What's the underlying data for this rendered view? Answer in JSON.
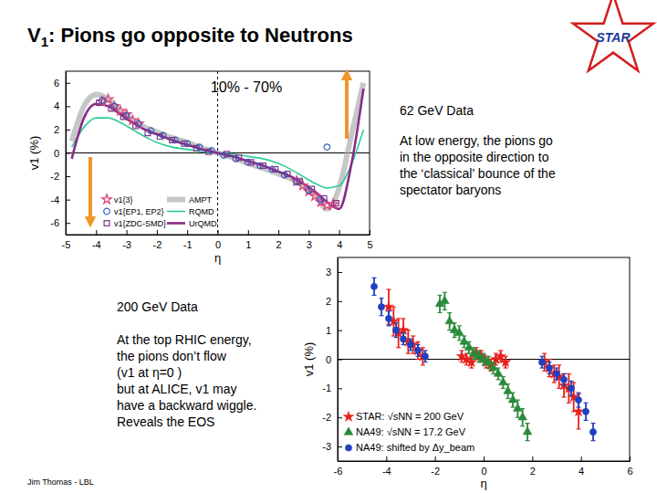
{
  "slide": {
    "title": [
      "V",
      "1",
      ": Pions go opposite to Neutrons"
    ],
    "logo": "STAR",
    "note_62": {
      "heading": "62 GeV Data",
      "lines": [
        "At low energy, the pions go",
        "in the opposite direction to",
        "the ‘classical’ bounce of the",
        "spectator baryons"
      ]
    },
    "note_200": {
      "heading": "200 GeV Data",
      "lines": [
        "At the top RHIC energy,",
        "the pions don’t flow",
        "(v1 at η=0 )",
        "but at ALICE, v1 may",
        "have a backward wiggle.",
        "Reveals the EOS"
      ]
    },
    "footer": "Jim Thomas - LBL"
  },
  "chart_data": [
    {
      "type": "scatter",
      "title": "10% - 70%",
      "x_label": "η",
      "y_label": "v1 (%)",
      "xlim": [
        -5,
        5
      ],
      "ylim": [
        -7,
        7
      ],
      "xticks": [
        -5,
        -4,
        -3,
        -2,
        -1,
        0,
        1,
        2,
        3,
        4,
        5
      ],
      "yticks": [
        -6,
        -4,
        -2,
        0,
        2,
        4,
        6
      ],
      "legend": "lower left",
      "reference_lines": [
        {
          "axis": "y",
          "value": 0,
          "line_style": "solid"
        },
        {
          "axis": "x",
          "value": 0,
          "line_style": "dashed"
        }
      ],
      "series": [
        {
          "name": "v1{3}",
          "color": "#e0407a",
          "marker": "open-star",
          "x": [
            -3.8,
            -3.6,
            -3.4,
            -3.2,
            -3.0,
            -2.8,
            -2.6,
            2.6,
            2.8,
            3.0,
            3.2,
            3.4,
            3.6,
            3.8
          ],
          "values": [
            4.4,
            4.6,
            4.0,
            3.6,
            3.3,
            2.8,
            2.5,
            -2.4,
            -2.8,
            -3.3,
            -3.7,
            -4.2,
            -4.5,
            -4.4
          ]
        },
        {
          "name": "v1{EP1, EP2}",
          "color": "#3060c0",
          "marker": "open-circle",
          "x": [
            -3.8,
            -3.4,
            -3.0,
            -2.6,
            -2.2,
            -1.8,
            -1.4,
            -1.0,
            -0.6,
            -0.2,
            0.2,
            0.6,
            1.0,
            1.4,
            1.8,
            2.2,
            2.6,
            3.0,
            3.4,
            3.6
          ],
          "values": [
            4.5,
            4.0,
            3.2,
            2.5,
            1.9,
            1.5,
            1.1,
            0.8,
            0.5,
            0.2,
            -0.2,
            -0.5,
            -0.8,
            -1.1,
            -1.4,
            -1.9,
            -2.5,
            -3.2,
            -4.0,
            0.5
          ]
        },
        {
          "name": "v1{ZDC-SMD}",
          "color": "#7a3a8a",
          "marker": "open-square",
          "x": [
            -3.9,
            -3.5,
            -3.1,
            -2.7,
            -2.3,
            -1.9,
            -1.5,
            -1.1,
            -0.7,
            -0.3,
            0.3,
            0.7,
            1.1,
            1.5,
            1.9,
            2.3,
            2.7,
            3.1,
            3.5,
            3.9
          ],
          "values": [
            4.3,
            3.8,
            3.1,
            2.3,
            1.7,
            1.4,
            1.1,
            0.8,
            0.4,
            0.1,
            -0.1,
            -0.4,
            -0.8,
            -1.1,
            -1.4,
            -1.8,
            -2.4,
            -3.1,
            -3.9,
            -4.3
          ]
        },
        {
          "name": "AMPT",
          "color": "#a8a8a8",
          "type": "line",
          "line_style": "solid",
          "x": [
            -4.8,
            -4.4,
            -4.0,
            -3.6,
            -3.2,
            -2.8,
            -2.4,
            -2.0,
            -1.5,
            -1.0,
            -0.5,
            0,
            0.5,
            1.0,
            1.5,
            2.0,
            2.4,
            2.8,
            3.2,
            3.6,
            4.0,
            4.4,
            4.8
          ],
          "values": [
            1.0,
            4.0,
            5.0,
            4.6,
            3.6,
            2.8,
            2.2,
            1.8,
            1.3,
            0.9,
            0.4,
            0,
            -0.4,
            -0.9,
            -1.3,
            -1.8,
            -2.2,
            -2.8,
            -3.6,
            -4.8,
            -3.0,
            1.5,
            6.0
          ]
        },
        {
          "name": "RQMD",
          "color": "#2ecc99",
          "type": "line",
          "line_style": "solid",
          "x": [
            -4.8,
            -4.4,
            -4.0,
            -3.6,
            -3.2,
            -2.8,
            -2.4,
            -2.0,
            -1.5,
            -1.0,
            -0.5,
            0,
            0.5,
            1.0,
            1.5,
            2.0,
            2.4,
            2.8,
            3.2,
            3.6,
            4.0,
            4.4,
            4.8
          ],
          "values": [
            0.5,
            2.2,
            3.0,
            3.0,
            2.6,
            2.0,
            1.4,
            0.9,
            0.5,
            0.3,
            0.1,
            0,
            -0.1,
            -0.3,
            -0.5,
            -0.9,
            -1.4,
            -2.0,
            -2.6,
            -3.0,
            -2.8,
            -1.0,
            2.0
          ]
        },
        {
          "name": "UrQMD",
          "color": "#8a2a8a",
          "type": "line",
          "line_style": "solid",
          "x": [
            -4.8,
            -4.4,
            -4.0,
            -3.6,
            -3.2,
            -2.8,
            -2.4,
            -2.0,
            -1.5,
            -1.0,
            -0.5,
            0,
            0.5,
            1.0,
            1.5,
            2.0,
            2.4,
            2.8,
            3.2,
            3.6,
            4.0,
            4.4,
            4.8
          ],
          "values": [
            -0.5,
            3.0,
            4.2,
            4.0,
            3.3,
            2.6,
            2.0,
            1.6,
            1.1,
            0.7,
            0.3,
            0,
            -0.3,
            -0.7,
            -1.1,
            -1.6,
            -2.0,
            -2.6,
            -3.3,
            -4.2,
            -4.8,
            -1.0,
            5.5
          ]
        }
      ]
    },
    {
      "type": "scatter",
      "x_label": "η",
      "y_label": "v1 (%)",
      "xlim": [
        -6,
        6
      ],
      "ylim": [
        -3.5,
        3.5
      ],
      "xticks": [
        -6,
        -4,
        -2,
        0,
        2,
        4,
        6
      ],
      "yticks": [
        -3,
        -2,
        -1,
        0,
        1,
        2,
        3
      ],
      "legend": "lower left",
      "reference_lines": [
        {
          "axis": "y",
          "value": 0,
          "line_style": "solid"
        }
      ],
      "series": [
        {
          "name": "STAR: √sNN = 200 GeV",
          "color": "#e8201a",
          "marker": "star",
          "x": [
            -3.9,
            -3.7,
            -3.5,
            -3.3,
            -3.1,
            -2.9,
            -2.7,
            -2.5,
            -0.9,
            -0.7,
            -0.5,
            -0.3,
            -0.1,
            0.1,
            0.3,
            0.5,
            0.7,
            0.9,
            2.5,
            2.7,
            2.9,
            3.1,
            3.3,
            3.5,
            3.7,
            3.9
          ],
          "values": [
            1.8,
            1.3,
            0.9,
            1.0,
            0.6,
            0.5,
            0.3,
            0.1,
            0.1,
            0.0,
            -0.1,
            0.2,
            0.1,
            -0.1,
            -0.2,
            0.0,
            0.1,
            -0.1,
            -0.1,
            -0.3,
            -0.5,
            -0.6,
            -0.9,
            -1.0,
            -1.3,
            -1.8
          ],
          "errors": [
            0.6,
            0.5,
            0.5,
            0.4,
            0.4,
            0.3,
            0.3,
            0.3,
            0.2,
            0.2,
            0.2,
            0.2,
            0.2,
            0.2,
            0.2,
            0.2,
            0.2,
            0.2,
            0.3,
            0.3,
            0.3,
            0.4,
            0.4,
            0.5,
            0.5,
            0.6
          ]
        },
        {
          "name": "NA49: √sNN = 17.2 GeV",
          "color": "#2a8a3a",
          "marker": "triangle",
          "x": [
            -1.8,
            -1.6,
            -1.4,
            -1.2,
            -1.0,
            -0.8,
            -0.6,
            -0.4,
            -0.2,
            0,
            0.2,
            0.4,
            0.6,
            0.8,
            1.0,
            1.2,
            1.4,
            1.6,
            1.8
          ],
          "values": [
            1.9,
            2.0,
            1.3,
            1.0,
            0.9,
            0.6,
            0.4,
            0.2,
            0.1,
            0,
            -0.1,
            -0.3,
            -0.5,
            -0.8,
            -1.1,
            -1.4,
            -1.7,
            -2.0,
            -2.5
          ],
          "errors": [
            0.3,
            0.3,
            0.3,
            0.25,
            0.25,
            0.2,
            0.2,
            0.2,
            0.2,
            0.2,
            0.2,
            0.2,
            0.2,
            0.2,
            0.25,
            0.25,
            0.3,
            0.3,
            0.3
          ]
        },
        {
          "name": "NA49: shifted by Δy_beam",
          "color": "#2040c0",
          "marker": "circle",
          "x": [
            -4.5,
            -4.2,
            -3.9,
            -3.6,
            -3.3,
            -3.0,
            -2.7,
            -2.4,
            2.4,
            2.7,
            3.0,
            3.3,
            3.6,
            3.9,
            4.2,
            4.5
          ],
          "values": [
            2.5,
            1.8,
            1.4,
            1.0,
            0.7,
            0.5,
            0.3,
            0.1,
            -0.1,
            -0.3,
            -0.5,
            -0.7,
            -1.0,
            -1.4,
            -1.8,
            -2.5
          ],
          "errors": [
            0.3,
            0.3,
            0.25,
            0.25,
            0.2,
            0.2,
            0.2,
            0.2,
            0.2,
            0.2,
            0.2,
            0.2,
            0.25,
            0.25,
            0.3,
            0.3
          ]
        }
      ]
    }
  ]
}
